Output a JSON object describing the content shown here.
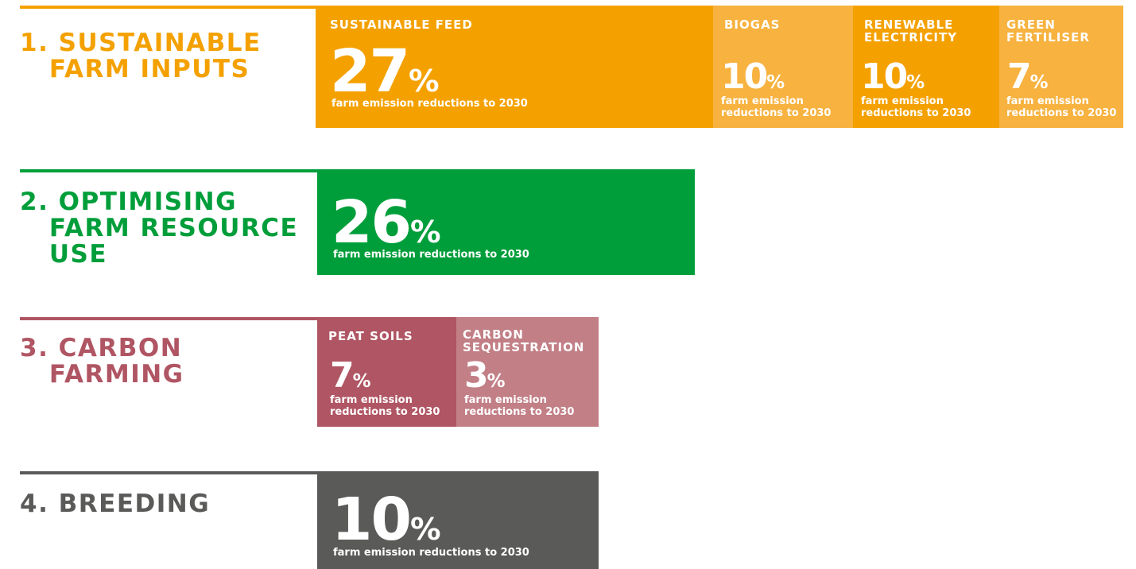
{
  "sections": [
    {
      "heading": [
        "1. SUSTAINABLE",
        "   FARM INPUTS"
      ],
      "tiles": [
        {
          "label": "SUSTAINABLE FEED",
          "value": 27,
          "unit": "%",
          "caption": "farm emission reductions to 2030"
        },
        {
          "label": "BIOGAS",
          "value": 10,
          "unit": "%",
          "caption": "farm emission reductions to 2030"
        },
        {
          "label": "RENEWABLE ELECTRICITY",
          "value": 10,
          "unit": "%",
          "caption": "farm emission reductions to 2030"
        },
        {
          "label": "GREEN FERTILISER",
          "value": 7,
          "unit": "%",
          "caption": "farm emission reductions to 2030"
        }
      ]
    },
    {
      "heading": [
        "2. OPTIMISING",
        "   FARM RESOURCE",
        "   USE"
      ],
      "tiles": [
        {
          "value": 26,
          "unit": "%",
          "caption": "farm emission reductions to 2030"
        }
      ]
    },
    {
      "heading": [
        "3. CARBON",
        "   FARMING"
      ],
      "tiles": [
        {
          "label": "PEAT SOILS",
          "value": 7,
          "unit": "%",
          "caption": "farm emission reductions to 2030"
        },
        {
          "label": "CARBON SEQUESTRATION",
          "value": 3,
          "unit": "%",
          "caption": "farm emission reductions to 2030"
        }
      ]
    },
    {
      "heading": [
        "4. BREEDING"
      ],
      "tiles": [
        {
          "value": 10,
          "unit": "%",
          "caption": "farm emission reductions to 2030"
        }
      ]
    }
  ]
}
